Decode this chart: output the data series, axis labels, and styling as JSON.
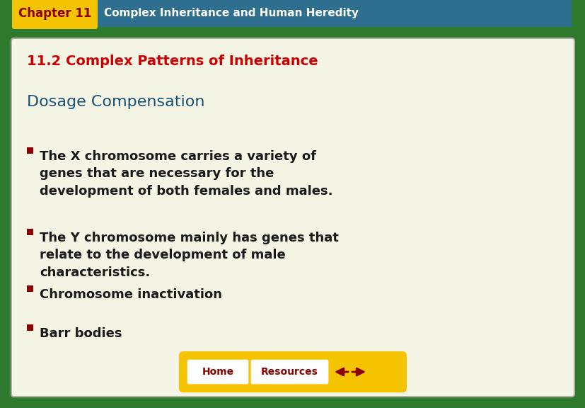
{
  "bg_outer": "#2d7a2d",
  "bg_header_yellow": "#f5c400",
  "bg_header_teal": "#2e6e8e",
  "bg_main": "#f5f5e6",
  "header_chapter_text": "Chapter 11",
  "header_chapter_color": "#8b0000",
  "header_title_text": "Complex Inheritance and Human Heredity",
  "header_title_color": "#ffffff",
  "section_title": "11.2 Complex Patterns of Inheritance",
  "section_title_color": "#cc0000",
  "subheading": "Dosage Compensation",
  "subheading_color": "#1a5276",
  "bullet_color": "#8b0000",
  "bullet_text_color": "#1a1a1a",
  "bullets": [
    "The X chromosome carries a variety of\ngenes that are necessary for the\ndevelopment of both females and males.",
    "The Y chromosome mainly has genes that\nrelate to the development of male\ncharacteristics.",
    "Chromosome inactivation",
    "Barr bodies"
  ],
  "nav_bg": "#f5c400",
  "nav_button_bg": "#ffffff",
  "nav_home_text": "Home",
  "nav_resources_text": "Resources",
  "nav_text_color": "#8b0000",
  "arrow_color": "#8b0000",
  "fig_width": 8.28,
  "fig_height": 5.76,
  "dpi": 100
}
